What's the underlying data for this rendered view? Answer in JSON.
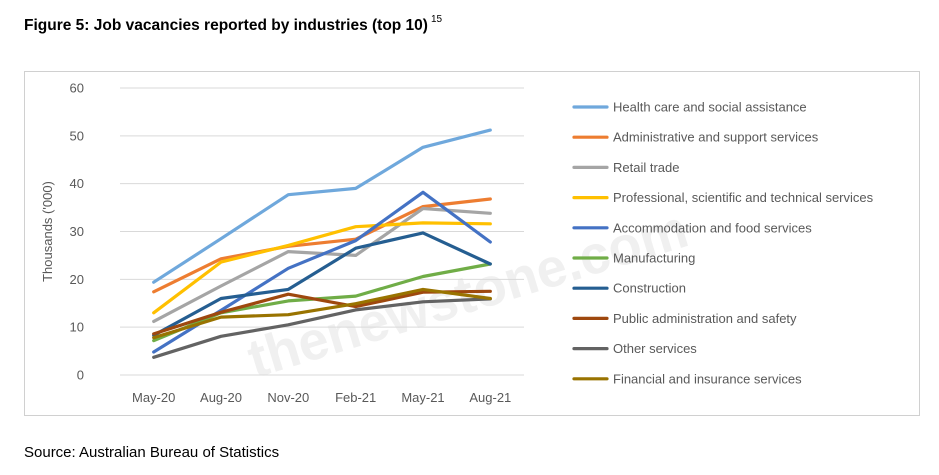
{
  "figure": {
    "title": "Figure 5: Job vacancies reported by industries (top 10)",
    "footnote": "15",
    "source": "Source: Australian Bureau of Statistics"
  },
  "watermark": "thenewstone.com",
  "chart_data": {
    "type": "line",
    "ylabel": "Thousands ('000)",
    "xlabel": "",
    "ylim": [
      0,
      60
    ],
    "yticks": [
      0,
      10,
      20,
      30,
      40,
      50,
      60
    ],
    "categories": [
      "May-20",
      "Aug-20",
      "Nov-20",
      "Feb-21",
      "May-21",
      "Aug-21"
    ],
    "grid": true,
    "legend_position": "right",
    "series": [
      {
        "name": "Health care and social assistance",
        "color": "#6fa8dc",
        "values": [
          19.4,
          28.5,
          37.7,
          39.0,
          47.6,
          51.2
        ]
      },
      {
        "name": "Administrative and support services",
        "color": "#ed7d31",
        "values": [
          17.4,
          24.3,
          26.9,
          28.4,
          35.2,
          36.8
        ]
      },
      {
        "name": "Retail trade",
        "color": "#a5a5a5",
        "values": [
          11.2,
          18.6,
          25.8,
          25.0,
          34.8,
          33.8
        ]
      },
      {
        "name": "Professional, scientific and technical services",
        "color": "#ffc000",
        "values": [
          13.0,
          23.6,
          27.1,
          31.0,
          31.8,
          31.6
        ]
      },
      {
        "name": "Accommodation and food services",
        "color": "#4472c4",
        "values": [
          4.8,
          13.5,
          22.3,
          28.1,
          38.2,
          27.8
        ]
      },
      {
        "name": "Manufacturing",
        "color": "#70ad47",
        "values": [
          7.2,
          13.0,
          15.5,
          16.5,
          20.6,
          23.2
        ]
      },
      {
        "name": "Construction",
        "color": "#255e91",
        "values": [
          8.3,
          16.0,
          17.9,
          26.5,
          29.7,
          23.2
        ]
      },
      {
        "name": "Public administration and safety",
        "color": "#9e480e",
        "values": [
          8.6,
          13.1,
          16.9,
          14.3,
          17.3,
          17.5
        ]
      },
      {
        "name": "Other services",
        "color": "#636363",
        "values": [
          3.7,
          8.1,
          10.5,
          13.6,
          15.3,
          15.9
        ]
      },
      {
        "name": "Financial and insurance services",
        "color": "#997300",
        "values": [
          7.8,
          12.1,
          12.6,
          14.9,
          17.9,
          16.0
        ]
      }
    ]
  }
}
